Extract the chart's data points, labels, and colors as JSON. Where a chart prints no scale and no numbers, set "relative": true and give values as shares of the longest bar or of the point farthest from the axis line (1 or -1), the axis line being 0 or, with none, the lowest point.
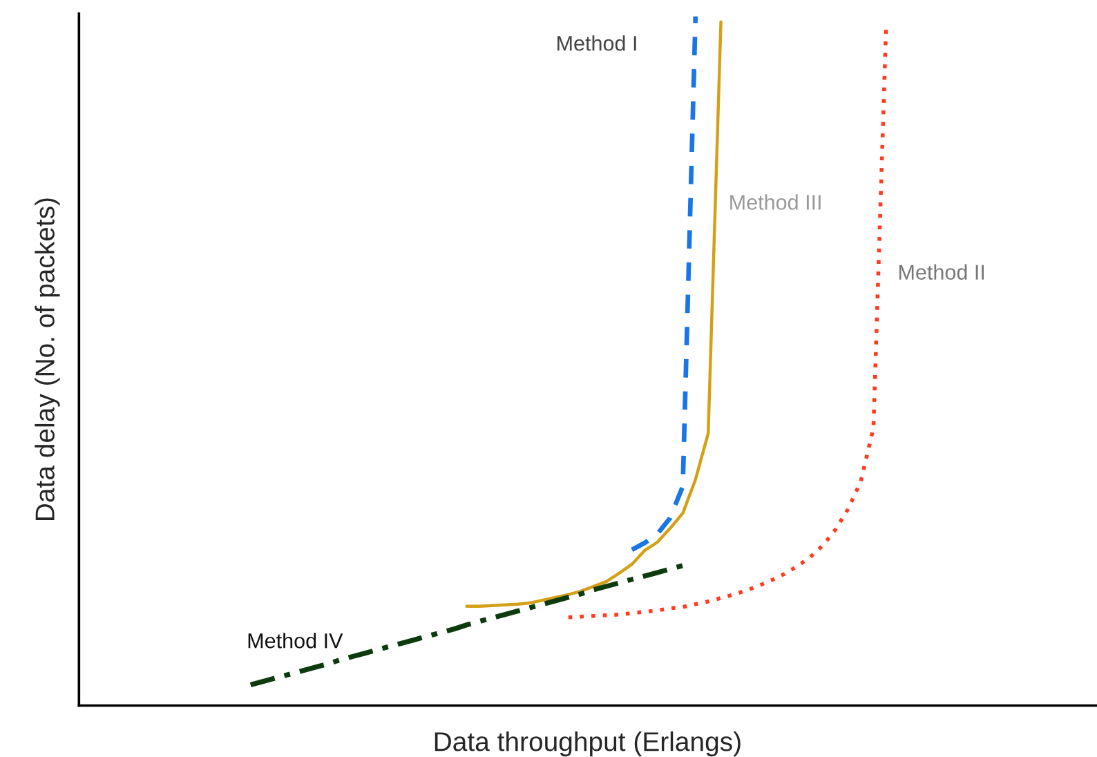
{
  "chart_data": {
    "type": "line",
    "relative": true,
    "xlabel": "Data throughput (Erlangs)",
    "ylabel": "Data delay (No. of packets)",
    "legend": false,
    "categories": [
      null,
      null,
      null,
      null,
      null,
      null,
      null,
      null,
      null,
      null,
      null,
      null,
      null,
      null,
      null,
      null,
      null,
      null,
      null,
      null,
      null,
      null,
      null,
      null,
      null,
      null,
      null,
      null,
      null,
      null,
      null,
      null,
      null,
      null,
      null,
      null,
      null,
      null,
      null,
      null,
      null,
      null,
      null,
      null,
      null,
      null,
      null,
      null,
      null,
      null,
      null,
      null,
      null,
      null,
      null,
      null,
      null,
      null,
      null,
      null,
      null,
      null,
      null,
      null,
      null,
      null,
      null,
      null,
      null,
      null,
      null,
      null,
      null,
      null,
      null,
      null,
      null,
      null,
      null,
      null
    ],
    "series": [
      {
        "name": "Method I",
        "color": "#1a75e8",
        "line_style": "dashed",
        "values": [
          null,
          null,
          null,
          null,
          null,
          null,
          null,
          null,
          null,
          null,
          null,
          null,
          null,
          null,
          null,
          null,
          null,
          null,
          null,
          null,
          null,
          null,
          null,
          null,
          null,
          null,
          null,
          null,
          null,
          null,
          null,
          null,
          null,
          null,
          null,
          null,
          null,
          null,
          null,
          null,
          null,
          null,
          null,
          0.226,
          0.236,
          0.249,
          0.272,
          0.318,
          1.0,
          null,
          null,
          null,
          null,
          null,
          null,
          null,
          null,
          null,
          null,
          null,
          null,
          null,
          null,
          null,
          null,
          null,
          null,
          null,
          null,
          null,
          null,
          null,
          null,
          null,
          null,
          null,
          null,
          null,
          null,
          null
        ]
      },
      {
        "name": "Method III",
        "color": "#d4a017",
        "line_style": "solid",
        "values": [
          null,
          null,
          null,
          null,
          null,
          null,
          null,
          null,
          null,
          null,
          null,
          null,
          null,
          null,
          null,
          null,
          null,
          null,
          null,
          null,
          null,
          null,
          null,
          null,
          null,
          null,
          null,
          null,
          null,
          null,
          0.144,
          0.144,
          0.145,
          0.146,
          0.147,
          0.149,
          0.153,
          0.157,
          0.161,
          0.166,
          0.173,
          0.18,
          0.192,
          0.205,
          0.225,
          0.237,
          0.257,
          0.279,
          0.328,
          0.395,
          0.992,
          null,
          null,
          null,
          null,
          null,
          null,
          null,
          null,
          null,
          null,
          null,
          null,
          null,
          null,
          null,
          null,
          null,
          null,
          null,
          null,
          null,
          null,
          null,
          null,
          null,
          null,
          null,
          null,
          null
        ]
      },
      {
        "name": "Method II",
        "color": "#ff3b1f",
        "line_style": "dotted",
        "values": [
          null,
          null,
          null,
          null,
          null,
          null,
          null,
          null,
          null,
          null,
          null,
          null,
          null,
          null,
          null,
          null,
          null,
          null,
          null,
          null,
          null,
          null,
          null,
          null,
          null,
          null,
          null,
          null,
          null,
          null,
          null,
          null,
          null,
          null,
          null,
          null,
          null,
          null,
          0.128,
          0.129,
          0.13,
          0.131,
          0.132,
          0.134,
          0.136,
          0.138,
          0.141,
          0.143,
          0.147,
          0.151,
          0.156,
          0.161,
          0.167,
          0.174,
          0.182,
          0.191,
          0.202,
          0.215,
          0.232,
          0.255,
          0.285,
          0.325,
          0.403,
          0.988,
          null,
          null,
          null,
          null,
          null,
          null,
          null,
          null,
          null,
          null,
          null,
          null,
          null,
          null,
          null,
          null
        ]
      },
      {
        "name": "Method IV",
        "color": "#0d3b0d",
        "line_style": "dashdot",
        "values": [
          null,
          null,
          null,
          null,
          null,
          null,
          null,
          null,
          null,
          null,
          null,
          null,
          null,
          0.03,
          0.035,
          0.04,
          0.045,
          0.05,
          0.055,
          0.06,
          0.066,
          0.071,
          0.076,
          0.081,
          0.086,
          0.091,
          0.096,
          0.101,
          0.106,
          0.111,
          0.117,
          0.122,
          0.127,
          0.132,
          0.137,
          0.142,
          0.147,
          0.152,
          0.157,
          0.162,
          0.168,
          0.173,
          0.178,
          0.183,
          0.188,
          0.193,
          0.198,
          0.203,
          null,
          null,
          null,
          null,
          null,
          null,
          null,
          null,
          null,
          null,
          null,
          null,
          null,
          null,
          null,
          null,
          null,
          null,
          null,
          null,
          null,
          null,
          null,
          null,
          null,
          null,
          null,
          null,
          null,
          null,
          null,
          null
        ]
      }
    ]
  }
}
